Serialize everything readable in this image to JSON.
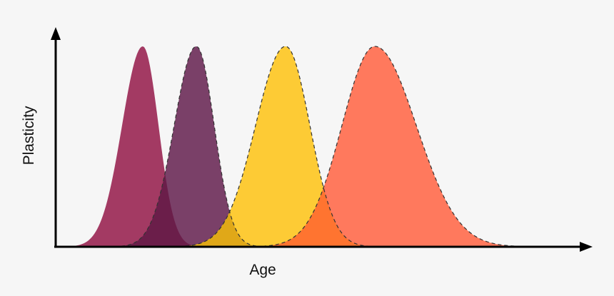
{
  "chart_data": {
    "type": "area",
    "title": "",
    "xlabel": "Age",
    "ylabel": "Plasticity",
    "ticks": "none",
    "grid": false,
    "legend": "none",
    "series": [
      {
        "peak": 200,
        "left_width": 29,
        "right_width": 22,
        "height": 1.0,
        "color": "#a33a63",
        "dashed_outline": false
      },
      {
        "peak": 275,
        "left_width": 31,
        "right_width": 25,
        "height": 1.0,
        "color": "#7a4068",
        "dashed_outline": true
      },
      {
        "peak": 400,
        "left_width": 42,
        "right_width": 34,
        "height": 1.0,
        "color": "#fdcb35",
        "dashed_outline": true
      },
      {
        "peak": 525,
        "left_width": 46,
        "right_width": 58,
        "height": 1.0,
        "color": "#ff795d",
        "dashed_outline": true
      }
    ],
    "overlap_colors": {
      "0_1": "#6b1e4a",
      "1_2": "#e0a818",
      "2_3": "#ff7430"
    }
  }
}
